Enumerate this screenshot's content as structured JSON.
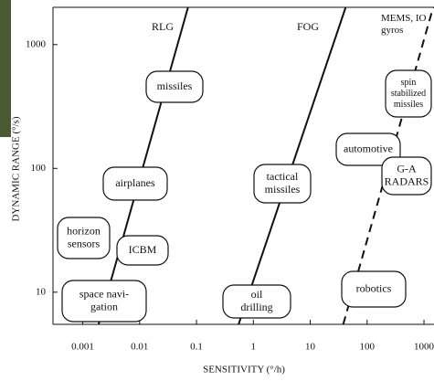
{
  "chart_data": {
    "type": "line",
    "x_label": "SENSITIVITY (°/h)",
    "y_label": "DYNAMIC RANGE (°/s)",
    "xscale": "log",
    "yscale": "log",
    "xlim": [
      0.0003,
      1500
    ],
    "ylim": [
      5.5,
      2000
    ],
    "xticks": [
      0.001,
      0.01,
      0.1,
      1,
      10,
      100,
      1000
    ],
    "yticks": [
      10,
      100,
      1000
    ],
    "series": [
      {
        "name": "RLG",
        "color": "#111111",
        "dash": false,
        "x": [
          0.0019,
          0.071
        ],
        "values": [
          5.5,
          2000
        ]
      },
      {
        "name": "FOG",
        "color": "#111111",
        "dash": false,
        "x": [
          0.55,
          42
        ],
        "values": [
          5.5,
          2000
        ]
      },
      {
        "name": "MEMS, IO gyros",
        "color": "#111111",
        "dash": true,
        "x": [
          38,
          1450
        ],
        "values": [
          5.5,
          2000
        ]
      }
    ],
    "annotations": [
      {
        "lines": [
          "missiles"
        ]
      },
      {
        "lines": [
          "airplanes"
        ]
      },
      {
        "lines": [
          "horizon",
          "sensors"
        ]
      },
      {
        "lines": [
          "ICBM"
        ]
      },
      {
        "lines": [
          "space navi-",
          "gation"
        ]
      },
      {
        "lines": [
          "tactical",
          "missiles"
        ]
      },
      {
        "lines": [
          "oil",
          "drilling"
        ]
      },
      {
        "lines": [
          "spin",
          "stabilized",
          "missiles"
        ]
      },
      {
        "lines": [
          "automotive"
        ]
      },
      {
        "lines": [
          "G-A",
          "RADARS"
        ]
      },
      {
        "lines": [
          "robotics"
        ]
      }
    ]
  }
}
